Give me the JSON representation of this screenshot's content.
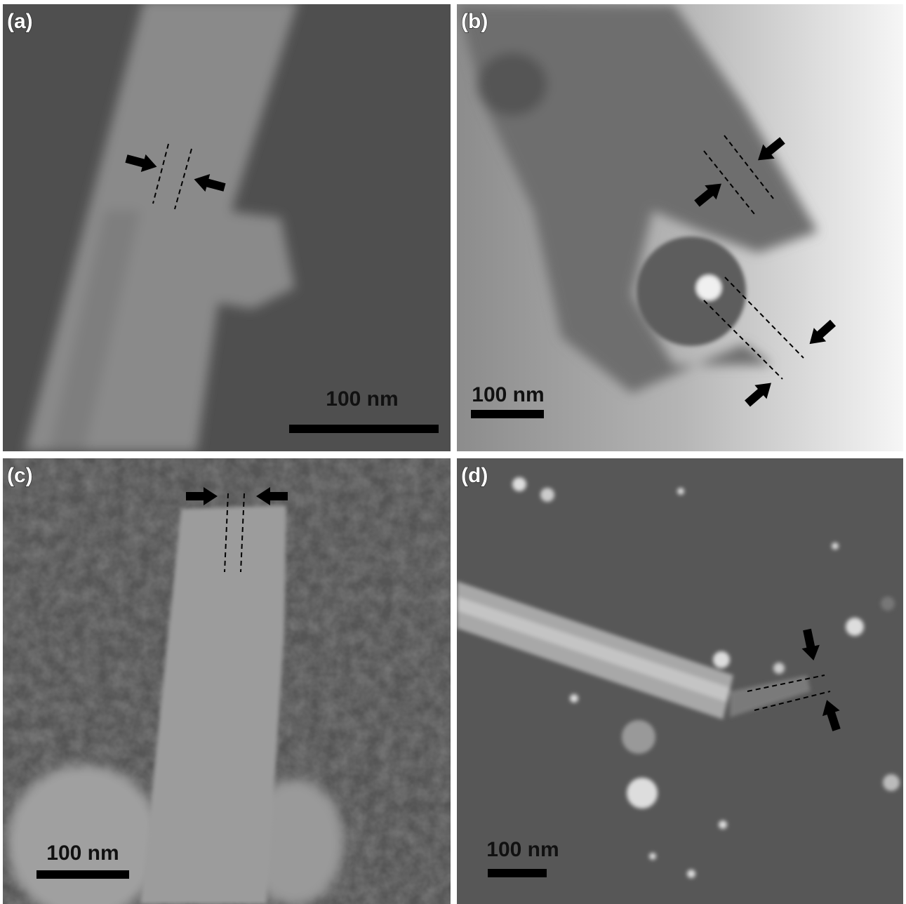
{
  "panels": [
    {
      "label": "(a)",
      "scale_bar": "100 nm"
    },
    {
      "label": "(b)",
      "scale_bar": "100 nm"
    },
    {
      "label": "(c)",
      "scale_bar": "100 nm"
    },
    {
      "label": "(d)",
      "scale_bar": "100 nm"
    }
  ]
}
